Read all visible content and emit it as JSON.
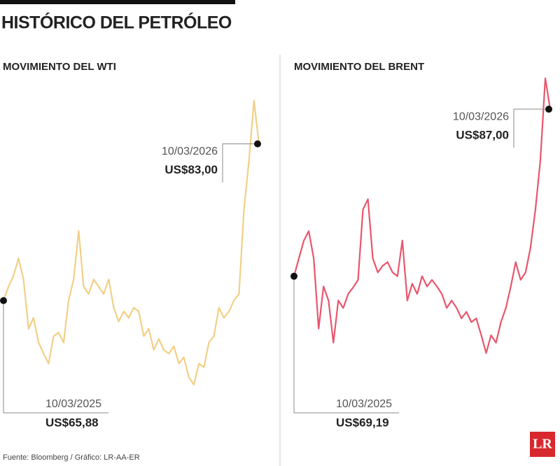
{
  "title": "HISTÓRICO DEL PETRÓLEO",
  "source": "Fuente: Bloomberg / Gráfico: LR-AA-ER",
  "logo": "LR",
  "chart_data": [
    {
      "type": "line",
      "title": "MOVIMIENTO DEL WTI",
      "color": "#f2cf86",
      "ylim": [
        55,
        90
      ],
      "values": [
        65.88,
        67.4,
        68.6,
        70.5,
        68.2,
        62.8,
        64,
        61.3,
        60.1,
        59,
        62,
        62.4,
        61.3,
        65.9,
        68.2,
        73.5,
        67.4,
        66.6,
        68.2,
        67.4,
        66.6,
        68.2,
        65.1,
        63.6,
        64.7,
        64,
        65.1,
        64.7,
        62,
        62.8,
        60.5,
        61.7,
        60.5,
        60.1,
        60.9,
        59,
        59.7,
        57.5,
        56.7,
        59,
        58.6,
        61.3,
        62,
        65.1,
        64,
        64.7,
        65.9,
        66.6,
        75.8,
        81.2,
        87.7,
        83.0
      ],
      "annotations": [
        {
          "date": "10/03/2025",
          "label": "US$65,88"
        },
        {
          "date": "10/03/2026",
          "label": "US$83,00"
        }
      ]
    },
    {
      "type": "line",
      "title": "MOVIMIENTO DEL BRENT",
      "color": "#e8566c",
      "ylim": [
        60,
        92
      ],
      "values": [
        69.19,
        71.1,
        73,
        74,
        71.1,
        63.6,
        68.1,
        66.6,
        62.1,
        66.6,
        65.8,
        67.3,
        68,
        68.8,
        76.3,
        77.4,
        71.1,
        69.6,
        70.3,
        70.7,
        69.6,
        69.2,
        73,
        66.6,
        68.4,
        67.3,
        69.2,
        68.1,
        68.8,
        68.1,
        67.3,
        65.8,
        66.6,
        65.8,
        64.7,
        65.4,
        64.3,
        64.7,
        62.9,
        61,
        62.9,
        62.1,
        64.3,
        65.8,
        68.1,
        70.7,
        68.8,
        69.6,
        72.2,
        76.3,
        81.5,
        90.3,
        87.0
      ],
      "annotations": [
        {
          "date": "10/03/2025",
          "label": "US$69,19"
        },
        {
          "date": "10/03/2026",
          "label": "US$87,00"
        }
      ]
    }
  ]
}
